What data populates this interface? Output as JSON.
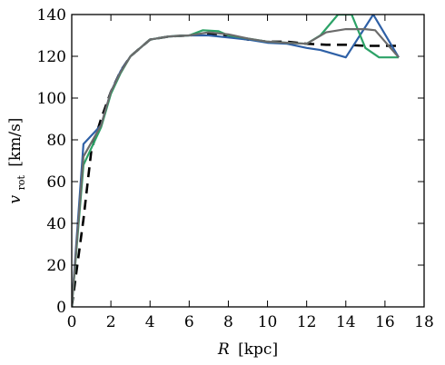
{
  "chart_data": {
    "type": "line",
    "title": "",
    "xlabel_var": "R",
    "xlabel_unit": "[kpc]",
    "ylabel_var": "v",
    "ylabel_sub": "rot",
    "ylabel_unit": "[km/s]",
    "xlim": [
      0,
      18
    ],
    "ylim": [
      0,
      140
    ],
    "xticks": [
      0,
      2,
      4,
      6,
      8,
      10,
      12,
      14,
      16,
      18
    ],
    "yticks": [
      0,
      20,
      40,
      60,
      80,
      100,
      120,
      140
    ],
    "grid": false,
    "legend": "none",
    "series": [
      {
        "style": "dashed",
        "color": "#000000",
        "points": [
          [
            0,
            0
          ],
          [
            0.6,
            42
          ],
          [
            1.0,
            75
          ],
          [
            1.5,
            90
          ],
          [
            2.0,
            103
          ],
          [
            2.5,
            113
          ],
          [
            3.0,
            120
          ],
          [
            4.0,
            128
          ],
          [
            5.0,
            129.5
          ],
          [
            6.0,
            130
          ],
          [
            7.0,
            131
          ],
          [
            8.0,
            130
          ],
          [
            9.0,
            128
          ],
          [
            10.0,
            127
          ],
          [
            11.0,
            127
          ],
          [
            12.0,
            126
          ],
          [
            13.0,
            125.5
          ],
          [
            14.0,
            125.5
          ],
          [
            15.0,
            125
          ],
          [
            16.0,
            125
          ],
          [
            16.7,
            125
          ]
        ]
      },
      {
        "style": "solid",
        "color": "#2e60a6",
        "points": [
          [
            0,
            0
          ],
          [
            0.6,
            78
          ],
          [
            1.5,
            87
          ],
          [
            2.0,
            103
          ],
          [
            2.5,
            113
          ],
          [
            3.0,
            120
          ],
          [
            4.0,
            128
          ],
          [
            5.0,
            129.5
          ],
          [
            6.0,
            130
          ],
          [
            7.0,
            130
          ],
          [
            8.0,
            129
          ],
          [
            9.0,
            128
          ],
          [
            10.0,
            126.5
          ],
          [
            11.0,
            126
          ],
          [
            12.0,
            124
          ],
          [
            12.7,
            123
          ],
          [
            14.0,
            119.5
          ],
          [
            15.4,
            140
          ],
          [
            16.7,
            119.5
          ]
        ]
      },
      {
        "style": "solid",
        "color": "#2ca267",
        "points": [
          [
            0,
            0
          ],
          [
            0.6,
            68
          ],
          [
            1.5,
            86
          ],
          [
            2.0,
            102
          ],
          [
            2.5,
            112
          ],
          [
            3.0,
            120
          ],
          [
            4.0,
            128
          ],
          [
            5.0,
            129.5
          ],
          [
            6.0,
            130
          ],
          [
            6.7,
            132.5
          ],
          [
            7.5,
            132
          ],
          [
            8.0,
            130
          ],
          [
            9.0,
            128.5
          ],
          [
            10.0,
            127
          ],
          [
            11.0,
            126.5
          ],
          [
            12.0,
            126
          ],
          [
            12.7,
            130
          ],
          [
            13.6,
            140
          ],
          [
            14.3,
            140
          ],
          [
            15.0,
            124
          ],
          [
            15.7,
            119.5
          ],
          [
            16.7,
            119.5
          ]
        ]
      },
      {
        "style": "solid",
        "color": "#6b6b6b",
        "points": [
          [
            0,
            0
          ],
          [
            0.6,
            72
          ],
          [
            1.5,
            87
          ],
          [
            2.0,
            103
          ],
          [
            2.5,
            112.5
          ],
          [
            3.0,
            120
          ],
          [
            4.0,
            128
          ],
          [
            5.0,
            129.5
          ],
          [
            6.0,
            130
          ],
          [
            7.0,
            131.5
          ],
          [
            8.0,
            130.5
          ],
          [
            9.0,
            128.5
          ],
          [
            10.0,
            127
          ],
          [
            11.0,
            126.5
          ],
          [
            12.0,
            126
          ],
          [
            13.0,
            131.5
          ],
          [
            14.0,
            133
          ],
          [
            15.0,
            133
          ],
          [
            15.5,
            132.5
          ],
          [
            16.7,
            119.5
          ]
        ]
      }
    ]
  }
}
